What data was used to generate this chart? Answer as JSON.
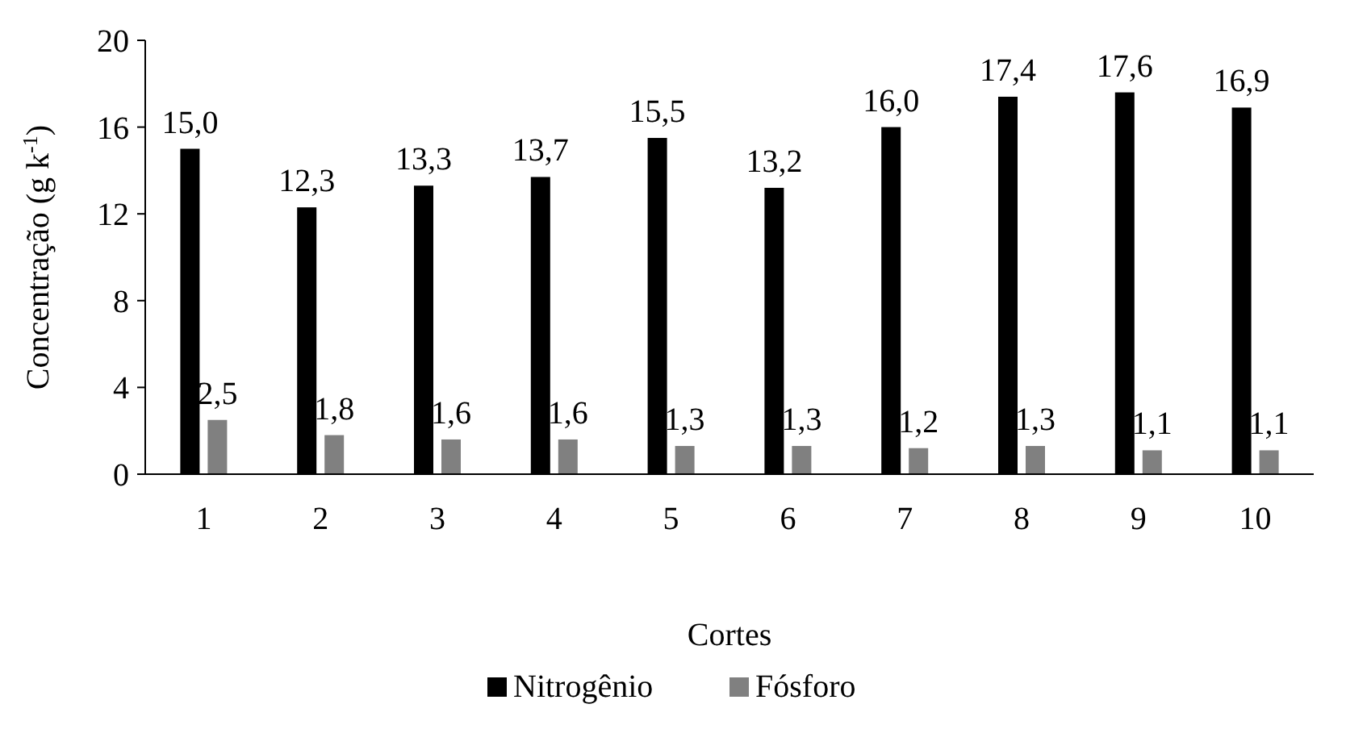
{
  "chart_data": {
    "type": "bar",
    "xlabel": "Cortes",
    "ylabel": "Concentração (g k$^{-1}$)",
    "categories": [
      "1",
      "2",
      "3",
      "4",
      "5",
      "6",
      "7",
      "8",
      "9",
      "10"
    ],
    "series": [
      {
        "name": "Nitrogênio",
        "color": "#000000",
        "values": [
          15.0,
          12.3,
          13.3,
          13.7,
          15.5,
          13.2,
          16.0,
          17.4,
          17.6,
          16.9
        ],
        "value_labels": [
          "15,0",
          "12,3",
          "13,3",
          "13,7",
          "15,5",
          "13,2",
          "16,0",
          "17,4",
          "17,6",
          "16,9"
        ]
      },
      {
        "name": "Fósforo",
        "color": "#808080",
        "values": [
          2.5,
          1.8,
          1.6,
          1.6,
          1.3,
          1.3,
          1.2,
          1.3,
          1.1,
          1.1
        ],
        "value_labels": [
          "2,5",
          "1,8",
          "1,6",
          "1,6",
          "1,3",
          "1,3",
          "1,2",
          "1,3",
          "1,1",
          "1,1"
        ]
      }
    ],
    "ylim": [
      0,
      20
    ],
    "yticks": [
      0,
      4,
      8,
      12,
      16,
      20
    ],
    "grid": false,
    "legend": "bottom"
  }
}
